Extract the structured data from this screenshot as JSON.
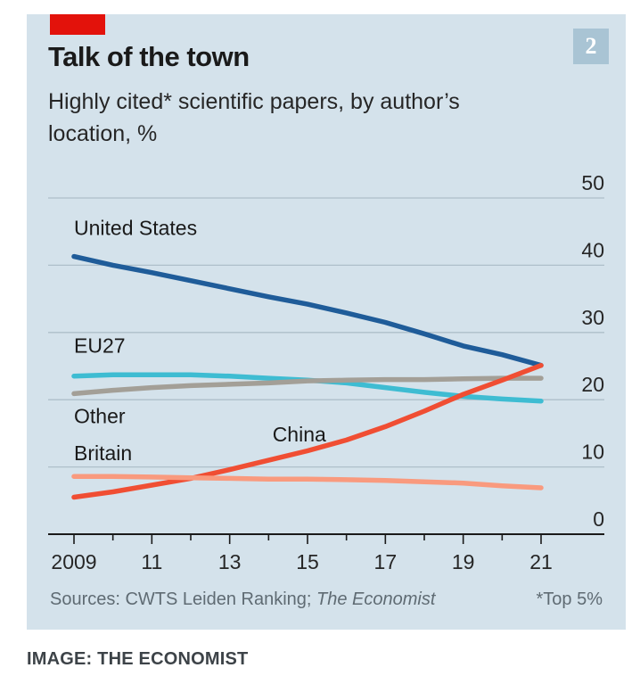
{
  "header": {
    "title": "Talk of the town",
    "subtitle": "Highly cited* scientific papers, by author’s location, %",
    "badge": "2"
  },
  "footer": {
    "sources_prefix": "Sources: CWTS Leiden Ranking; ",
    "sources_italic": "The Economist",
    "footnote": "*Top 5%"
  },
  "credit": "IMAGE: THE ECONOMIST",
  "colors": {
    "panel_bg": "#d4e2eb",
    "accent_red": "#e3120b",
    "grid": "#aebfca"
  },
  "chart_data": {
    "type": "line",
    "ylim": [
      0,
      50
    ],
    "yticks": [
      0,
      10,
      20,
      30,
      40,
      50
    ],
    "xlim": [
      2009,
      2021
    ],
    "xticks": [
      2009,
      2011,
      2013,
      2015,
      2017,
      2019,
      2021
    ],
    "xtick_labels": [
      "2009",
      "11",
      "13",
      "15",
      "17",
      "19",
      "21"
    ],
    "x": [
      2009,
      2010,
      2011,
      2012,
      2013,
      2014,
      2015,
      2016,
      2017,
      2018,
      2019,
      2020,
      2021
    ],
    "series": [
      {
        "name": "United States",
        "color": "#1f5c99",
        "values": [
          41.3,
          40.0,
          38.9,
          37.7,
          36.5,
          35.3,
          34.2,
          32.9,
          31.5,
          29.8,
          28.0,
          26.7,
          25.1
        ]
      },
      {
        "name": "EU27",
        "color": "#3ebcd2",
        "values": [
          23.5,
          23.7,
          23.7,
          23.7,
          23.5,
          23.2,
          22.9,
          22.5,
          21.8,
          21.1,
          20.5,
          20.1,
          19.8
        ]
      },
      {
        "name": "Other",
        "color": "#a39f97",
        "values": [
          20.9,
          21.4,
          21.8,
          22.1,
          22.3,
          22.5,
          22.8,
          22.9,
          23.0,
          23.0,
          23.1,
          23.2,
          23.2
        ]
      },
      {
        "name": "China",
        "color": "#f04e33",
        "values": [
          5.5,
          6.3,
          7.3,
          8.3,
          9.6,
          11.0,
          12.4,
          14.0,
          16.0,
          18.3,
          20.8,
          22.9,
          25.1
        ]
      },
      {
        "name": "Britain",
        "color": "#f99a7e",
        "values": [
          8.6,
          8.6,
          8.5,
          8.4,
          8.3,
          8.2,
          8.2,
          8.1,
          8.0,
          7.8,
          7.6,
          7.2,
          6.9
        ]
      }
    ],
    "labels": [
      {
        "text": "United States",
        "x": 2009,
        "y": 44.5
      },
      {
        "text": "EU27",
        "x": 2009,
        "y": 27.0
      },
      {
        "text": "Other",
        "x": 2009,
        "y": 16.5
      },
      {
        "text": "Britain",
        "x": 2009,
        "y": 11.0
      },
      {
        "text": "China",
        "x": 2014.1,
        "y": 13.8
      }
    ]
  }
}
